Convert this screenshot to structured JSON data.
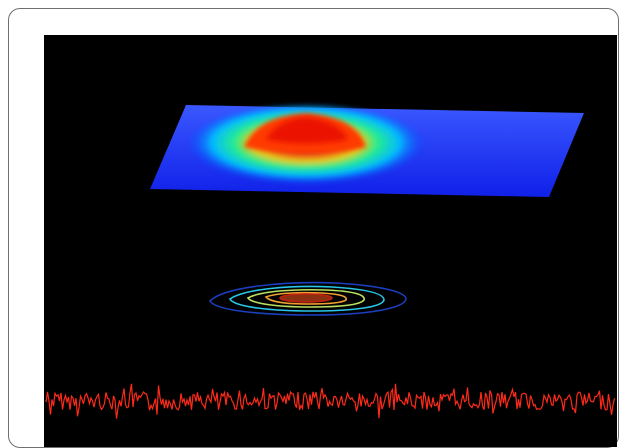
{
  "figure": {
    "background": "#000000",
    "frame_border": "#6f6f6f",
    "panels": [
      {
        "id": "surface",
        "kind": "3d-surface",
        "colormap": [
          "#0a1cff",
          "#00c8ff",
          "#22ff88",
          "#ffe000",
          "#ff3300",
          "#e00000"
        ]
      },
      {
        "id": "contours",
        "kind": "contour-projection",
        "colors": [
          "#1b3fbf",
          "#28c6e8",
          "#b8e060",
          "#f0a030",
          "#c02010"
        ]
      },
      {
        "id": "signal",
        "kind": "noise-trace",
        "color": "#ff2a1a"
      }
    ]
  }
}
